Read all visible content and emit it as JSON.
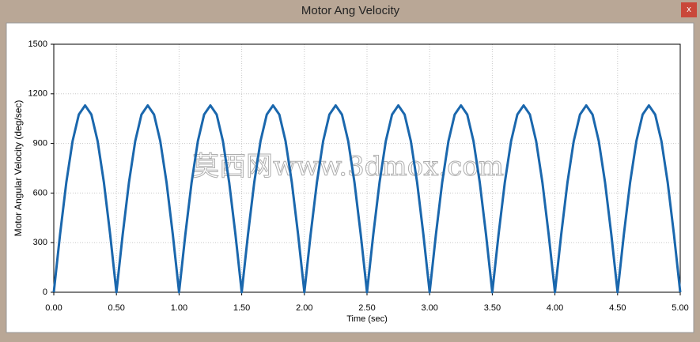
{
  "window": {
    "title": "Motor Ang Velocity",
    "close": "x"
  },
  "chart_data": {
    "type": "line",
    "x_label": "Time (sec)",
    "y_label": "Motor Angular Velocity (deg/sec)",
    "watermark": "莫西网www.3dmox.com",
    "x": [
      0,
      0.05,
      0.1,
      0.15,
      0.2,
      0.25,
      0.3,
      0.35,
      0.4,
      0.45,
      0.5,
      0.55,
      0.6,
      0.65,
      0.7,
      0.75,
      0.8,
      0.85,
      0.9,
      0.95,
      1,
      1.05,
      1.1,
      1.15,
      1.2,
      1.25,
      1.3,
      1.35,
      1.4,
      1.45,
      1.5,
      1.55,
      1.6,
      1.65,
      1.7,
      1.75,
      1.8,
      1.85,
      1.9,
      1.95,
      2,
      2.05,
      2.1,
      2.15,
      2.2,
      2.25,
      2.3,
      2.35,
      2.4,
      2.45,
      2.5,
      2.55,
      2.6,
      2.65,
      2.7,
      2.75,
      2.8,
      2.85,
      2.9,
      2.95,
      3,
      3.05,
      3.1,
      3.15,
      3.2,
      3.25,
      3.3,
      3.35,
      3.4,
      3.45,
      3.5,
      3.55,
      3.6,
      3.65,
      3.7,
      3.75,
      3.8,
      3.85,
      3.9,
      3.95,
      4,
      4.05,
      4.1,
      4.15,
      4.2,
      4.25,
      4.3,
      4.35,
      4.4,
      4.45,
      4.5,
      4.55,
      4.6,
      4.65,
      4.7,
      4.75,
      4.8,
      4.85,
      4.9,
      4.95,
      5
    ],
    "series": [
      {
        "color": "#1a67ad",
        "values": [
          0,
          349,
          664,
          914,
          1075,
          1130,
          1075,
          914,
          664,
          349,
          0,
          349,
          664,
          914,
          1075,
          1130,
          1075,
          914,
          664,
          349,
          0,
          349,
          664,
          914,
          1075,
          1130,
          1075,
          914,
          664,
          349,
          0,
          349,
          664,
          914,
          1075,
          1130,
          1075,
          914,
          664,
          349,
          0,
          349,
          664,
          914,
          1075,
          1130,
          1075,
          914,
          664,
          349,
          0,
          349,
          664,
          914,
          1075,
          1130,
          1075,
          914,
          664,
          349,
          0,
          349,
          664,
          914,
          1075,
          1130,
          1075,
          914,
          664,
          349,
          0,
          349,
          664,
          914,
          1075,
          1130,
          1075,
          914,
          664,
          349,
          0,
          349,
          664,
          914,
          1075,
          1130,
          1075,
          914,
          664,
          349,
          0,
          349,
          664,
          914,
          1075,
          1130,
          1075,
          914,
          664,
          349,
          0
        ]
      }
    ],
    "xlim": [
      0,
      5
    ],
    "ylim": [
      0,
      1500
    ],
    "xticks": [
      {
        "value": 0,
        "label": "0.00"
      },
      {
        "value": 0.5,
        "label": "0.50"
      },
      {
        "value": 1,
        "label": "1.00"
      },
      {
        "value": 1.5,
        "label": "1.50"
      },
      {
        "value": 2,
        "label": "2.00"
      },
      {
        "value": 2.5,
        "label": "2.50"
      },
      {
        "value": 3,
        "label": "3.00"
      },
      {
        "value": 3.5,
        "label": "3.50"
      },
      {
        "value": 4,
        "label": "4.00"
      },
      {
        "value": 4.5,
        "label": "4.50"
      },
      {
        "value": 5,
        "label": "5.00"
      }
    ],
    "yticks": [
      0,
      300,
      600,
      900,
      1200,
      1500
    ],
    "grid": true
  }
}
